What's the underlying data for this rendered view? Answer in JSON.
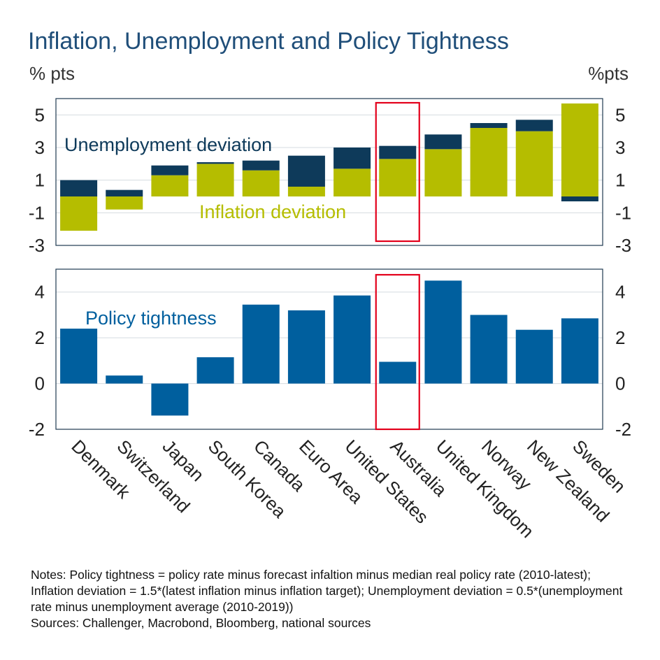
{
  "title": "Inflation, Unemployment and Policy Tightness",
  "left_unit": "% pts",
  "right_unit": "%pts",
  "colors": {
    "unemployment": "#0e3a5a",
    "inflation": "#b5bd00",
    "policy": "#005f9e",
    "highlight": "#e3001b",
    "title": "#1f4e79",
    "axis": "#1f3a50",
    "grid": "#d5dbe0"
  },
  "chart_data": [
    {
      "type": "bar",
      "stacked": true,
      "categories": [
        "Denmark",
        "Switzerland",
        "Japan",
        "South Korea",
        "Canada",
        "Euro Area",
        "United States",
        "Australia",
        "United Kingdom",
        "Norway",
        "New Zealand",
        "Sweden"
      ],
      "series": [
        {
          "name": "Inflation deviation",
          "values": [
            -2.1,
            -0.8,
            1.3,
            2.0,
            1.6,
            0.6,
            1.7,
            2.3,
            2.9,
            4.2,
            4.0,
            5.7
          ]
        },
        {
          "name": "Unemployment deviation",
          "values": [
            1.0,
            0.4,
            0.6,
            0.1,
            0.6,
            1.9,
            1.3,
            0.8,
            0.9,
            0.3,
            0.7,
            -0.3
          ]
        }
      ],
      "series_labels": {
        "unemployment": "Unemployment deviation",
        "inflation": "Inflation deviation"
      },
      "yticks": [
        5,
        3,
        1,
        -1,
        -3
      ],
      "ytick_labels": [
        "5",
        "3",
        "1",
        "-1",
        "-3"
      ],
      "ylim": [
        -3,
        6
      ],
      "highlight": "Australia",
      "grid": true
    },
    {
      "type": "bar",
      "categories": [
        "Denmark",
        "Switzerland",
        "Japan",
        "South Korea",
        "Canada",
        "Euro Area",
        "United States",
        "Australia",
        "United Kingdom",
        "Norway",
        "New Zealand",
        "Sweden"
      ],
      "series": [
        {
          "name": "Policy tightness",
          "values": [
            2.4,
            0.35,
            -1.4,
            1.15,
            3.45,
            3.2,
            3.85,
            0.95,
            4.5,
            3.0,
            2.35,
            2.85
          ]
        }
      ],
      "series_labels": {
        "policy": "Policy tightness"
      },
      "yticks": [
        4,
        2,
        0,
        -2
      ],
      "ytick_labels": [
        "4",
        "2",
        "0",
        "-2"
      ],
      "ylim": [
        -2,
        5
      ],
      "highlight": "Australia",
      "grid": true
    }
  ],
  "notes": [
    "Notes: Policy tightness = policy rate minus forecast infaltion minus median real policy rate (2010-latest); Inflation deviation = 1.5*(latest inflation minus inflation target); Unemployment deviation = 0.5*(unemployment rate minus unemployment average (2010-2019))",
    "Sources: Challenger, Macrobond, Bloomberg, national sources"
  ]
}
